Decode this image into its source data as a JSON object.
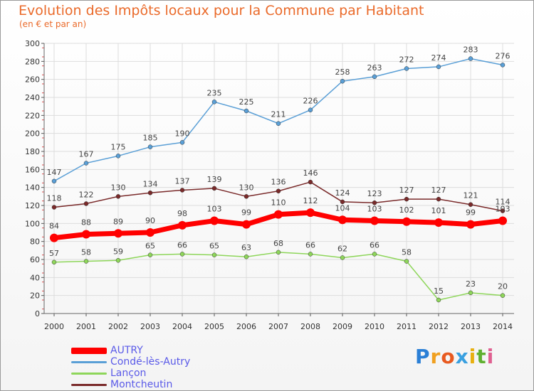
{
  "chart_data": {
    "type": "line",
    "title": "Evolution des Impôts locaux pour la Commune par Habitant",
    "subtitle": "(en € et par an)",
    "xlabel": "",
    "ylabel": "",
    "x": [
      "2000",
      "2001",
      "2002",
      "2003",
      "2004",
      "2005",
      "2006",
      "2007",
      "2008",
      "2009",
      "2010",
      "2011",
      "2012",
      "2013",
      "2014"
    ],
    "ylim": [
      0,
      300
    ],
    "yticks": [
      "0",
      "20",
      "40",
      "60",
      "80",
      "100",
      "120",
      "140",
      "160",
      "180",
      "200",
      "220",
      "240",
      "260",
      "280",
      "300"
    ],
    "grid": true,
    "legend_position": "bottom-left",
    "series": [
      {
        "name": "Condé-lès-Autry",
        "color": "#5a9fd6",
        "values": [
          147,
          167,
          175,
          185,
          190,
          235,
          225,
          211,
          226,
          258,
          263,
          272,
          274,
          283,
          276
        ]
      },
      {
        "name": "Montcheutin",
        "color": "#7a2a2a",
        "values": [
          118,
          122,
          130,
          134,
          137,
          139,
          130,
          136,
          146,
          124,
          123,
          127,
          127,
          121,
          114
        ]
      },
      {
        "name": "AUTRY",
        "color": "#ff0000",
        "values": [
          84,
          88,
          89,
          90,
          98,
          103,
          99,
          110,
          112,
          104,
          103,
          102,
          101,
          99,
          103
        ]
      },
      {
        "name": "Lançon",
        "color": "#8ed65a",
        "values": [
          57,
          58,
          59,
          65,
          66,
          65,
          63,
          68,
          66,
          62,
          66,
          58,
          15,
          23,
          20
        ]
      }
    ]
  },
  "legend": [
    {
      "label": "AUTRY",
      "color": "#ff0000"
    },
    {
      "label": "Condé-lès-Autry",
      "color": "#5a9fd6"
    },
    {
      "label": "Lançon",
      "color": "#8ed65a"
    },
    {
      "label": "Montcheutin",
      "color": "#7a2a2a"
    }
  ],
  "logo": {
    "letters": [
      "P",
      "r",
      "o",
      "x",
      "i",
      "t",
      "i"
    ],
    "colors": [
      "#2a7fd6",
      "#f0a020",
      "#e85a20",
      "#3aa0e0",
      "#e8b010",
      "#60b030",
      "#e06090"
    ]
  }
}
